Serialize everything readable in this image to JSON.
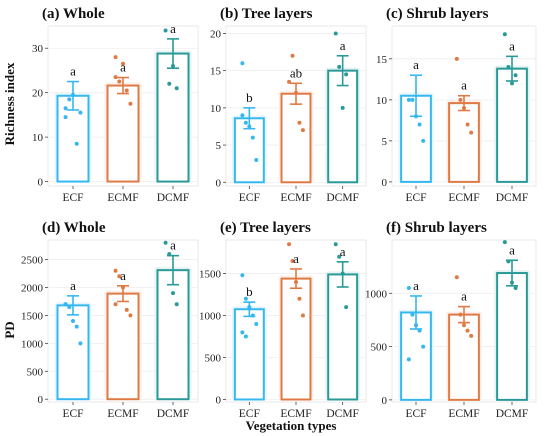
{
  "figure": {
    "ylabel_top": "Richness index",
    "ylabel_bottom": "PD",
    "xlabel": "Vegetation types"
  },
  "colors": {
    "ECF": "#35b8f0",
    "ECMF": "#e07a45",
    "DCMF": "#2a9a98",
    "background": "#ffffff",
    "grid": "#eeeeee"
  },
  "chart_data": [
    {
      "type": "bar",
      "title": "(a) Whole",
      "ylabel": "Richness index",
      "xlabel": "",
      "categories": [
        "ECF",
        "ECMF",
        "DCMF"
      ],
      "values": [
        19.3,
        21.6,
        28.8
      ],
      "errors": [
        3.2,
        1.8,
        3.3
      ],
      "letters": [
        "a",
        "a",
        "a"
      ],
      "points": [
        [
          16.5,
          18.5,
          19.5,
          8.5,
          15.5,
          14.5
        ],
        [
          23.5,
          22.5,
          26.5,
          20.5,
          17.5,
          28.0
        ],
        [
          34.0,
          22.0,
          26.0,
          21.0
        ]
      ],
      "ylim": [
        -1,
        35
      ],
      "yticks": [
        0,
        10,
        20,
        30
      ]
    },
    {
      "type": "bar",
      "title": "(b) Tree layers",
      "ylabel": "",
      "xlabel": "",
      "categories": [
        "ECF",
        "ECMF",
        "DCMF"
      ],
      "values": [
        8.6,
        11.9,
        15.0
      ],
      "errors": [
        1.4,
        1.4,
        2.0
      ],
      "letters": [
        "b",
        "ab",
        "a"
      ],
      "points": [
        [
          16.0,
          8.0,
          7.5,
          6.0,
          3.0,
          9.0
        ],
        [
          13.5,
          17.0,
          12.0,
          8.0,
          7.0
        ],
        [
          20.0,
          15.5,
          10.0,
          14.5
        ]
      ],
      "ylim": [
        -0.5,
        21
      ],
      "yticks": [
        0,
        5,
        10,
        15,
        20
      ]
    },
    {
      "type": "bar",
      "title": "(c) Shrub layers",
      "ylabel": "",
      "xlabel": "",
      "categories": [
        "ECF",
        "ECMF",
        "DCMF"
      ],
      "values": [
        10.5,
        9.6,
        13.8
      ],
      "errors": [
        2.5,
        0.9,
        1.5
      ],
      "letters": [
        "a",
        "a",
        "a"
      ],
      "points": [
        [
          10.0,
          10.0,
          8.0,
          7.0,
          5.0
        ],
        [
          15.0,
          10.0,
          9.0,
          7.0,
          6.0
        ],
        [
          18.0,
          14.0,
          12.0,
          13.0
        ]
      ],
      "ylim": [
        -0.5,
        19
      ],
      "yticks": [
        0,
        5,
        10,
        15
      ]
    },
    {
      "type": "bar",
      "title": "(d) Whole",
      "ylabel": "PD",
      "xlabel": "",
      "categories": [
        "ECF",
        "ECMF",
        "DCMF"
      ],
      "values": [
        1680,
        1890,
        2310
      ],
      "errors": [
        170,
        140,
        260
      ],
      "letters": [
        "a",
        "a",
        "a"
      ],
      "points": [
        [
          1700,
          1650,
          1400,
          1300,
          1000,
          1700
        ],
        [
          2300,
          2200,
          2000,
          1600,
          1500,
          1700
        ],
        [
          2800,
          2600,
          1900,
          1700
        ]
      ],
      "ylim": [
        -50,
        2850
      ],
      "yticks": [
        0,
        500,
        1000,
        1500,
        2000,
        2500
      ]
    },
    {
      "type": "bar",
      "title": "(e) Tree layers",
      "ylabel": "",
      "xlabel": "Vegetation types",
      "categories": [
        "ECF",
        "ECMF",
        "DCMF"
      ],
      "values": [
        1075,
        1440,
        1490
      ],
      "errors": [
        85,
        115,
        150
      ],
      "letters": [
        "b",
        "a",
        "a"
      ],
      "points": [
        [
          1480,
          1200,
          1100,
          1000,
          900,
          800,
          750
        ],
        [
          1850,
          1650,
          1400,
          1200,
          1000
        ],
        [
          1850,
          1700,
          1500,
          1100
        ]
      ],
      "ylim": [
        -30,
        1900
      ],
      "yticks": [
        0,
        500,
        1000,
        1500
      ]
    },
    {
      "type": "bar",
      "title": "(f) Shrub layers",
      "ylabel": "",
      "xlabel": "",
      "categories": [
        "ECF",
        "ECMF",
        "DCMF"
      ],
      "values": [
        820,
        800,
        1190
      ],
      "errors": [
        155,
        75,
        120
      ],
      "letters": [
        "a",
        "a",
        "a"
      ],
      "points": [
        [
          1050,
          800,
          700,
          650,
          500,
          380
        ],
        [
          1150,
          800,
          700,
          650,
          600
        ],
        [
          1480,
          1300,
          1100,
          1050
        ]
      ],
      "ylim": [
        -20,
        1500
      ],
      "yticks": [
        0,
        500,
        1000
      ]
    }
  ]
}
